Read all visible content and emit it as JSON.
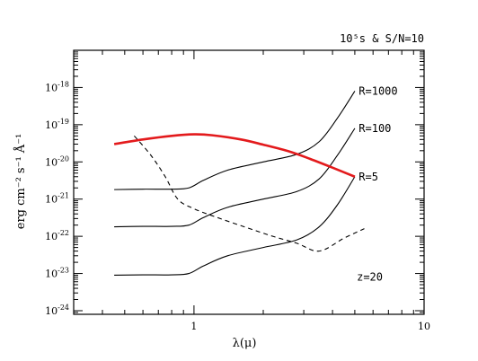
{
  "chart_data": {
    "type": "line",
    "title": "10⁵s & S/N=10",
    "xlabel": "λ(μ)",
    "ylabel": "erg cm⁻² s⁻¹ Å⁻¹",
    "xscale": "log",
    "yscale": "log",
    "xlim": [
      0.3,
      10
    ],
    "ylim": [
      8e-25,
      1e-17
    ],
    "x_ticks": [
      {
        "value": 1,
        "label": "1"
      },
      {
        "value": 10,
        "label": "10"
      }
    ],
    "y_ticks": [
      {
        "value": 1e-18,
        "base": "10",
        "exp": "-18"
      },
      {
        "value": 1e-19,
        "base": "10",
        "exp": "-19"
      },
      {
        "value": 1e-20,
        "base": "10",
        "exp": "-20"
      },
      {
        "value": 1e-21,
        "base": "10",
        "exp": "-21"
      },
      {
        "value": 1e-22,
        "base": "10",
        "exp": "-22"
      },
      {
        "value": 1e-23,
        "base": "10",
        "exp": "-23"
      },
      {
        "value": 1e-24,
        "base": "10",
        "exp": "-24"
      }
    ],
    "series": [
      {
        "name": "R=1000",
        "color": "#000000",
        "style": "solid",
        "x": [
          0.45,
          0.6,
          0.8,
          0.95,
          1.1,
          1.4,
          2.0,
          2.8,
          3.5,
          4.2,
          5.0
        ],
        "y": [
          1.8e-21,
          1.85e-21,
          1.85e-21,
          2e-21,
          3.2e-21,
          6e-21,
          1e-20,
          1.6e-20,
          3.5e-20,
          1.5e-19,
          8e-19
        ]
      },
      {
        "name": "R=100",
        "color": "#000000",
        "style": "solid",
        "x": [
          0.45,
          0.6,
          0.8,
          0.95,
          1.1,
          1.4,
          2.0,
          2.8,
          3.5,
          4.2,
          5.0
        ],
        "y": [
          1.8e-22,
          1.85e-22,
          1.85e-22,
          2e-22,
          3.2e-22,
          6e-22,
          1e-21,
          1.6e-21,
          3.5e-21,
          1.5e-20,
          8e-20
        ]
      },
      {
        "name": "R=5",
        "color": "#000000",
        "style": "solid",
        "x": [
          0.45,
          0.6,
          0.8,
          0.95,
          1.1,
          1.4,
          2.0,
          2.8,
          3.5,
          4.2,
          5.0
        ],
        "y": [
          9e-24,
          9.2e-24,
          9.2e-24,
          1e-23,
          1.6e-23,
          3e-23,
          5e-23,
          8e-23,
          1.8e-22,
          7e-22,
          4e-21
        ]
      },
      {
        "name": "z=20",
        "color": "#e31a1c",
        "style": "solid",
        "x": [
          0.45,
          0.6,
          0.8,
          1.0,
          1.2,
          1.6,
          2.0,
          2.6,
          3.2,
          4.0,
          5.0
        ],
        "y": [
          3e-20,
          4e-20,
          5e-20,
          5.5e-20,
          5.2e-20,
          4e-20,
          2.9e-20,
          1.9e-20,
          1.2e-20,
          7e-21,
          4e-21
        ]
      },
      {
        "color": "#000000",
        "style": "dashed",
        "x": [
          0.55,
          0.65,
          0.75,
          0.85,
          1.0,
          1.3,
          1.7,
          2.2,
          2.8,
          3.5,
          4.5,
          5.5
        ],
        "y": [
          5e-20,
          1.5e-20,
          4e-21,
          1e-21,
          5.5e-22,
          3e-22,
          1.7e-22,
          1e-22,
          6.5e-23,
          4e-23,
          9e-23,
          1.6e-22
        ]
      }
    ],
    "annotations": [
      {
        "text": "R=1000",
        "color": "#000000",
        "x": 5.2,
        "y": 8e-19
      },
      {
        "text": "R=100",
        "color": "#000000",
        "x": 5.2,
        "y": 8e-20
      },
      {
        "text": "R=5",
        "color": "#000000",
        "x": 5.2,
        "y": 4e-21
      },
      {
        "text": "z=20",
        "color": "#e31a1c",
        "x": 5.1,
        "y": 8e-24
      }
    ],
    "grid": false,
    "legend": "none"
  }
}
